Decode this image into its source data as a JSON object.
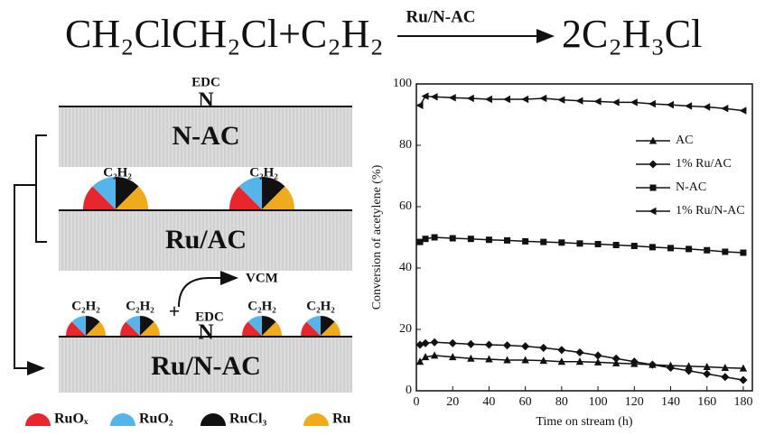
{
  "reaction": {
    "reactants": "CH₂ClCH₂Cl+C₂H₂",
    "catalyst": "Ru/N-AC",
    "product": "2C₂H₃Cl"
  },
  "scheme": {
    "top_edc": "EDC",
    "top_n": "N",
    "n_ac": "N-AC",
    "ru_ac_c2h2": [
      "C₂H₂",
      "C₂H₂"
    ],
    "ru_ac": "Ru/AC",
    "vcm": "VCM",
    "plus": "+",
    "bottom_edc": "EDC",
    "bottom_n": "N",
    "ru_n_ac_c2h2": [
      "C₂H₂",
      "C₂H₂",
      "C₂H₂",
      "C₂H₂"
    ],
    "ru_n_ac": "Ru/N-AC",
    "legend": [
      {
        "label": "RuOₓ",
        "color": "#e8262e"
      },
      {
        "label": "RuO₂",
        "color": "#55b4ea"
      },
      {
        "label": "RuCl₃",
        "color": "#111111"
      },
      {
        "label": "Ru",
        "color": "#f0ab1c"
      }
    ]
  },
  "chart_data": {
    "type": "line",
    "x_label": "Time on stream (h)",
    "y_label": "Conversion of acetylene (%)",
    "x": [
      2,
      5,
      10,
      20,
      30,
      40,
      50,
      60,
      70,
      80,
      90,
      100,
      110,
      120,
      130,
      140,
      150,
      160,
      170,
      180
    ],
    "xlim": [
      0,
      185
    ],
    "xticks": [
      0,
      20,
      40,
      60,
      80,
      100,
      120,
      140,
      160,
      180
    ],
    "ylim": [
      0,
      100
    ],
    "yticks": [
      0,
      20,
      40,
      60,
      80,
      100
    ],
    "legend": "upper right",
    "series": [
      {
        "name": "AC",
        "color": "#111111",
        "marker": "triangle-up",
        "values": [
          9.5,
          11,
          11.5,
          11,
          10.5,
          10.3,
          10,
          10,
          9.8,
          9.5,
          9.5,
          9.3,
          9,
          8.8,
          8.5,
          8.2,
          8,
          7.8,
          7.5,
          7.3
        ]
      },
      {
        "name": "1% Ru/AC",
        "color": "#111111",
        "marker": "diamond",
        "values": [
          15,
          15.5,
          15.8,
          15.5,
          15.2,
          15,
          14.8,
          14.5,
          14,
          13.3,
          12.5,
          11.5,
          10.5,
          9.5,
          8.5,
          7.5,
          6.5,
          5.5,
          4.5,
          3.5
        ]
      },
      {
        "name": "N-AC",
        "color": "#111111",
        "marker": "square",
        "values": [
          48.5,
          49.5,
          50,
          49.7,
          49.5,
          49.2,
          49,
          48.7,
          48.5,
          48.3,
          48,
          47.8,
          47.5,
          47.2,
          46.8,
          46.5,
          46.2,
          45.8,
          45.3,
          45
        ]
      },
      {
        "name": "1% Ru/N-AC",
        "color": "#111111",
        "marker": "triangle-left",
        "values": [
          93,
          96,
          95.8,
          95.5,
          95.3,
          95,
          95,
          95,
          95.3,
          94.8,
          94.5,
          94.3,
          94,
          94,
          93.5,
          93.2,
          92.8,
          92.5,
          92,
          91.3
        ]
      }
    ]
  }
}
